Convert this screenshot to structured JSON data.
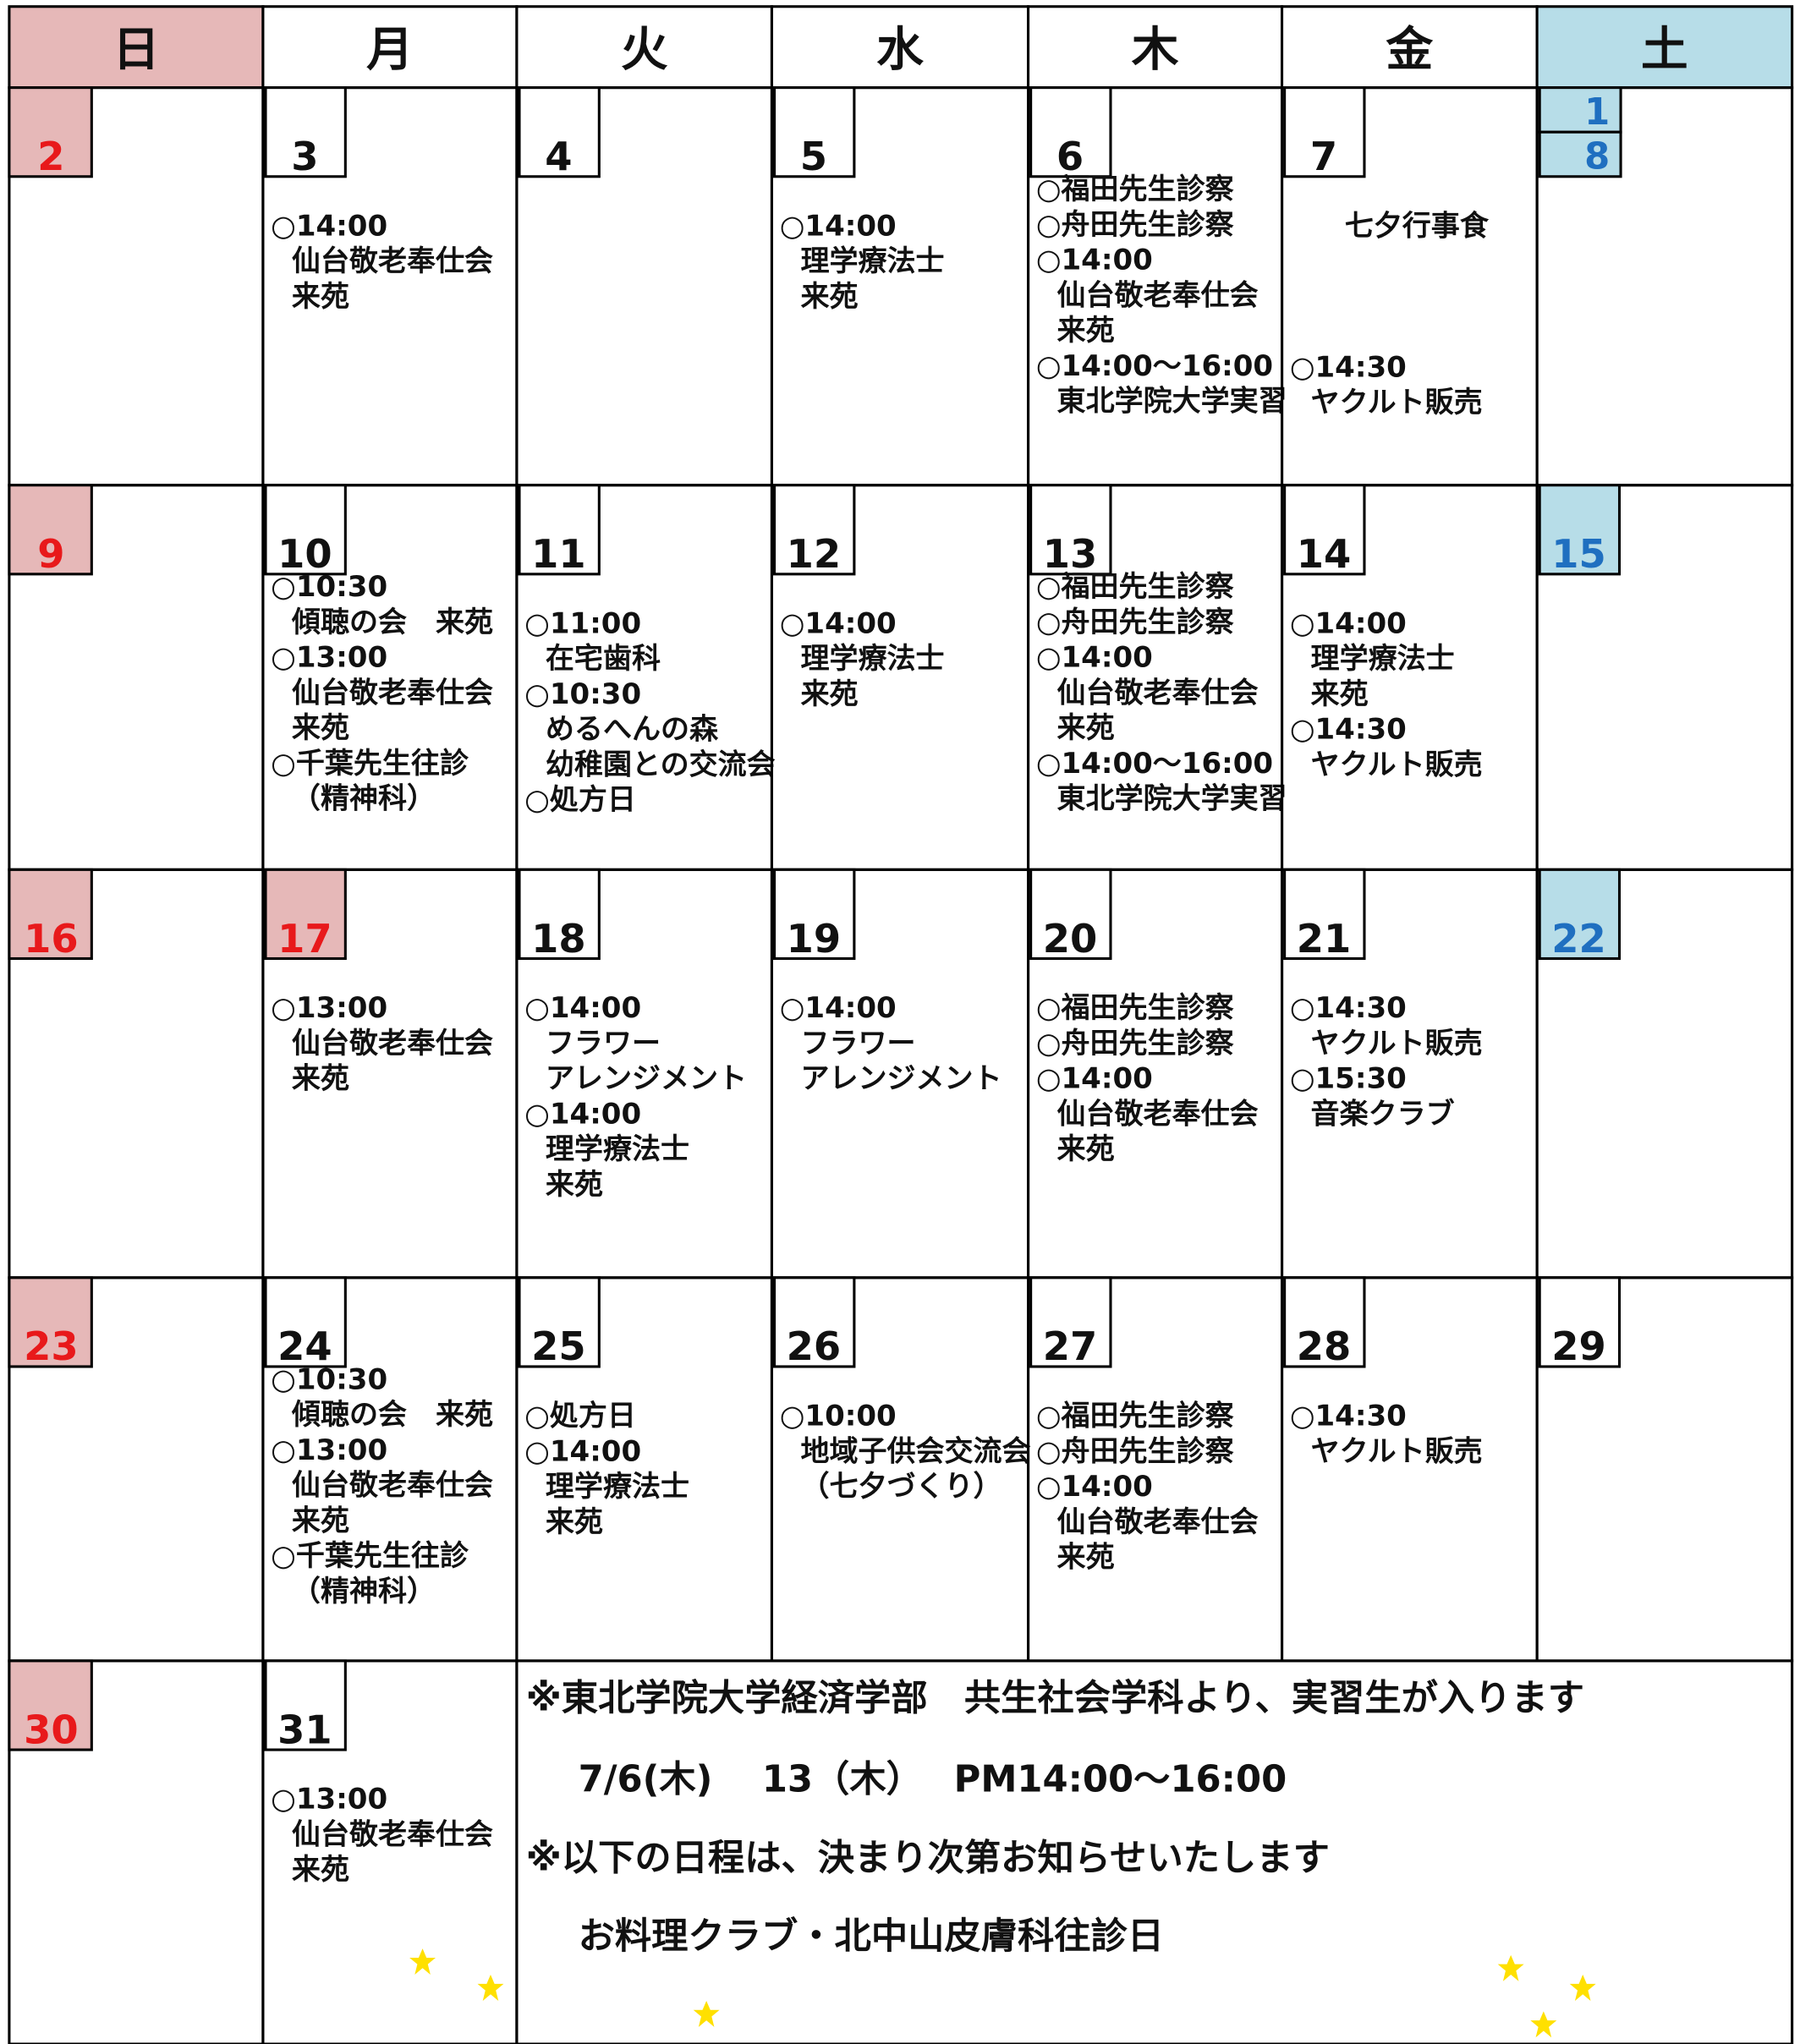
{
  "header": {
    "days": [
      {
        "label": "日",
        "fill": "#e6b8b8"
      },
      {
        "label": "月"
      },
      {
        "label": "火"
      },
      {
        "label": "水"
      },
      {
        "label": "木"
      },
      {
        "label": "金"
      },
      {
        "label": "土",
        "fill": "#b7dde8"
      }
    ]
  },
  "weeks": [
    [
      {
        "day": "2",
        "color": "#e8191b",
        "fill": "#e6b8b8"
      },
      {
        "day": "3",
        "lines": [
          "○14:00",
          "仙台敬老奉仕会",
          "来苑"
        ]
      },
      {
        "day": "4"
      },
      {
        "day": "5",
        "lines": [
          "○14:00",
          "理学療法士",
          "来苑"
        ]
      },
      {
        "day": "6",
        "lines": [
          "○福田先生診察",
          "○舟田先生診察",
          "○14:00",
          "仙台敬老奉仕会",
          "来苑",
          "○14:00～16:00",
          "東北学院大学実習"
        ]
      },
      {
        "day": "7",
        "lines": [
          "七夕行事食",
          "",
          "",
          "",
          "○14:30",
          "ヤクルト販売"
        ]
      },
      {
        "day": "1",
        "day2": "8",
        "color": "#1f6fc0",
        "fill": "#b7dde8"
      }
    ],
    [
      {
        "day": "9",
        "color": "#e8191b",
        "fill": "#e6b8b8"
      },
      {
        "day": "10",
        "lines": [
          "○10:30",
          "傾聴の会　来苑",
          "○13:00",
          "仙台敬老奉仕会",
          "来苑",
          "○千葉先生往診",
          "（精神科）"
        ]
      },
      {
        "day": "11",
        "lines": [
          "○11:00",
          "在宅歯科",
          "○10:30",
          "めるへんの森",
          "幼稚園との交流会",
          "○処方日"
        ]
      },
      {
        "day": "12",
        "lines": [
          "○14:00",
          "理学療法士",
          "来苑"
        ]
      },
      {
        "day": "13",
        "lines": [
          "○福田先生診察",
          "○舟田先生診察",
          "○14:00",
          "仙台敬老奉仕会",
          "来苑",
          "○14:00～16:00",
          "東北学院大学実習"
        ]
      },
      {
        "day": "14",
        "lines": [
          "○14:00",
          "理学療法士",
          "来苑",
          "○14:30",
          "ヤクルト販売"
        ]
      },
      {
        "day": "15",
        "color": "#1f6fc0",
        "fill": "#b7dde8"
      }
    ],
    [
      {
        "day": "16",
        "color": "#e8191b",
        "fill": "#e6b8b8"
      },
      {
        "day": "17",
        "color": "#e8191b",
        "fill": "#e6b8b8",
        "lines": [
          "○13:00",
          "仙台敬老奉仕会",
          "来苑"
        ]
      },
      {
        "day": "18",
        "lines": [
          "○14:00",
          "フラワー",
          "アレンジメント",
          "○14:00",
          "理学療法士",
          "来苑"
        ]
      },
      {
        "day": "19",
        "lines": [
          "○14:00",
          "フラワー",
          "アレンジメント"
        ]
      },
      {
        "day": "20",
        "lines": [
          "○福田先生診察",
          "○舟田先生診察",
          "○14:00",
          "仙台敬老奉仕会",
          "来苑"
        ]
      },
      {
        "day": "21",
        "lines": [
          "○14:30",
          "ヤクルト販売",
          "○15:30",
          "音楽クラブ"
        ]
      },
      {
        "day": "22",
        "color": "#1f6fc0",
        "fill": "#b7dde8"
      }
    ],
    [
      {
        "day": "23",
        "color": "#e8191b",
        "fill": "#e6b8b8"
      },
      {
        "day": "24",
        "lines": [
          "○10:30",
          "傾聴の会　来苑",
          "○13:00",
          "仙台敬老奉仕会",
          "来苑",
          "○千葉先生往診",
          "（精神科）"
        ]
      },
      {
        "day": "25",
        "lines": [
          "○処方日",
          "○14:00",
          "理学療法士",
          "来苑"
        ]
      },
      {
        "day": "26",
        "lines": [
          "○10:00",
          "地域子供会交流会",
          "（七夕づくり）"
        ]
      },
      {
        "day": "27",
        "lines": [
          "○福田先生診察",
          "○舟田先生診察",
          "○14:00",
          "仙台敬老奉仕会",
          "来苑"
        ]
      },
      {
        "day": "28",
        "lines": [
          "○14:30",
          "ヤクルト販売"
        ]
      },
      {
        "day": "29"
      }
    ],
    [
      {
        "day": "30",
        "color": "#e8191b",
        "fill": "#e6b8b8"
      },
      {
        "day": "31",
        "lines": [
          "○13:00",
          "仙台敬老奉仕会",
          "来苑"
        ]
      }
    ]
  ],
  "notes": [
    "※東北学院大学経済学部　共生社会学科より、実習生が入ります",
    "7/6(木)　 13（木）　 PM14:00～16:00",
    "※以下の日程は、決まり次第お知らせいたします",
    "お料理クラブ・北中山皮膚科往診日"
  ]
}
